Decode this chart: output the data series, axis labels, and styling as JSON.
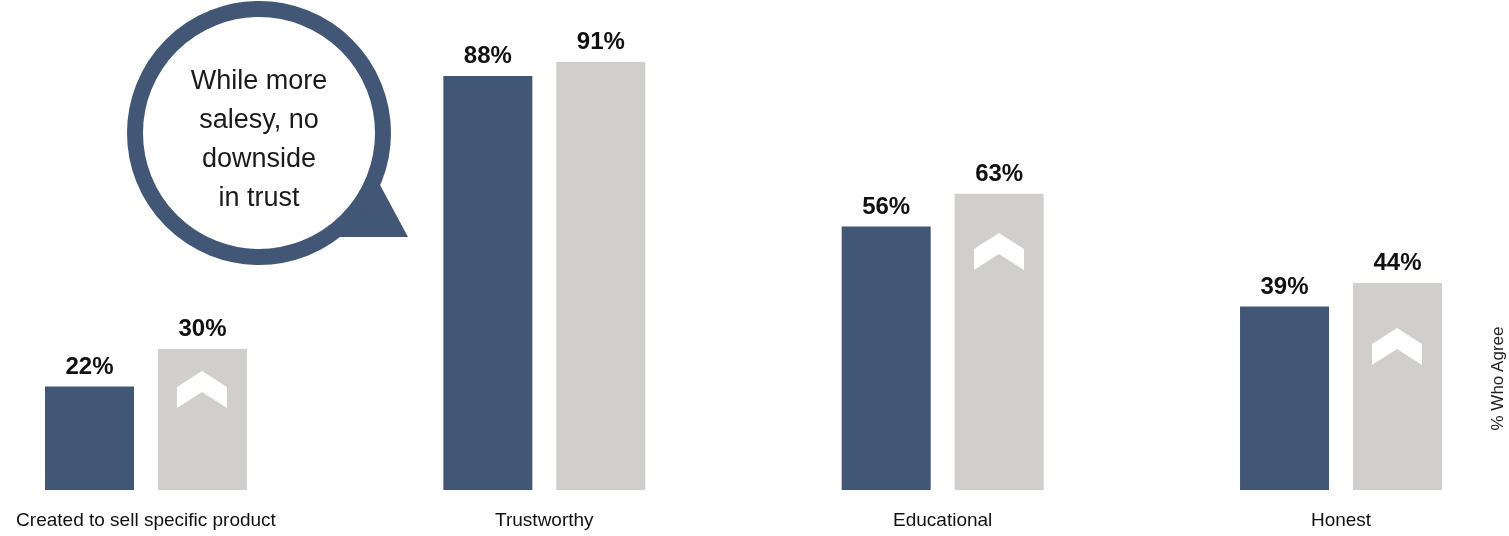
{
  "chart_data": {
    "type": "bar",
    "categories": [
      "Created to sell specific product",
      "Trustworthy",
      "Educational",
      "Honest"
    ],
    "series": [
      {
        "color": "#425775",
        "values": [
          22,
          88,
          56,
          39
        ],
        "value_labels": [
          "22%",
          "88%",
          "56%",
          "39%"
        ]
      },
      {
        "color": "#d0cfcd",
        "values": [
          30,
          91,
          63,
          44
        ],
        "value_labels": [
          "30%",
          "91%",
          "63%",
          "44%"
        ]
      }
    ],
    "ylabel": "% Who Agree",
    "tick_labels": "x",
    "annotations": [
      "While more salesy, no downside in trust"
    ]
  }
}
